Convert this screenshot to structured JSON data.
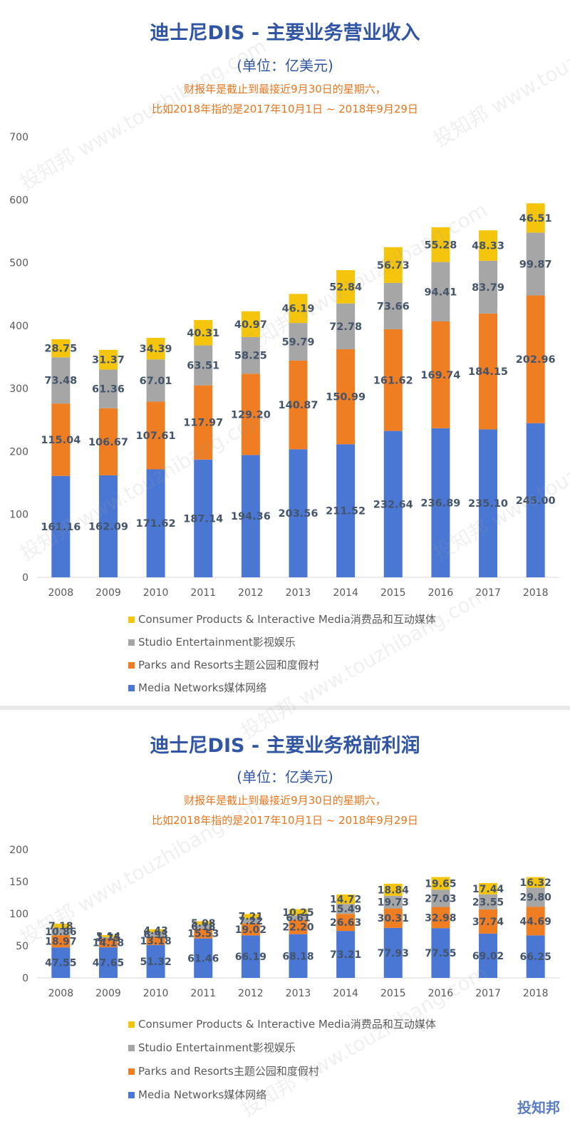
{
  "watermark": "投知邦 www.touzhibang.com",
  "logo": "投知邦",
  "colors": {
    "media": "#4a77d4",
    "parks": "#ef7d22",
    "studio": "#a6a6a6",
    "consumer": "#f5c40d",
    "title": "#2f55a4",
    "note": "#e9751d"
  },
  "chart_data": [
    {
      "type": "bar",
      "stacked": true,
      "title": "迪士尼DIS - 主要业务营业收入",
      "subtitle": "(单位：亿美元)",
      "notes": [
        "财报年是截止到最接近9月30日的星期六，",
        "比如2018年指的是2017年10月1日 ~ 2018年9月29日"
      ],
      "categories": [
        "2008",
        "2009",
        "2010",
        "2011",
        "2012",
        "2013",
        "2014",
        "2015",
        "2016",
        "2017",
        "2018"
      ],
      "ylim": [
        0,
        700
      ],
      "yticks": [
        "0",
        "100",
        "200",
        "300",
        "400",
        "500",
        "600",
        "700"
      ],
      "series": [
        {
          "name": "Media Networks媒体网络",
          "color": "#4a77d4",
          "values": [
            161.16,
            162.09,
            171.62,
            187.14,
            194.36,
            203.56,
            211.52,
            232.64,
            236.89,
            235.1,
            245.0
          ],
          "labels": [
            "161.16",
            "162.09",
            "171.62",
            "187.14",
            "194.36",
            "203.56",
            "211.52",
            "232.64",
            "236.89",
            "235.10",
            "245.00"
          ]
        },
        {
          "name": "Parks and Resorts主题公园和度假村",
          "color": "#ef7d22",
          "values": [
            115.04,
            106.67,
            107.61,
            117.97,
            129.2,
            140.87,
            150.99,
            161.62,
            169.74,
            184.15,
            202.96
          ],
          "labels": [
            "115.04",
            "106.67",
            "107.61",
            "117.97",
            "129.20",
            "140.87",
            "150.99",
            "161.62",
            "169.74",
            "184.15",
            "202.96"
          ]
        },
        {
          "name": "Studio Entertainment影视娱乐",
          "color": "#a6a6a6",
          "values": [
            73.48,
            61.36,
            67.01,
            63.51,
            58.25,
            59.79,
            72.78,
            73.66,
            94.41,
            83.79,
            99.87
          ],
          "labels": [
            "73.48",
            "61.36",
            "67.01",
            "63.51",
            "58.25",
            "59.79",
            "72.78",
            "73.66",
            "94.41",
            "83.79",
            "99.87"
          ]
        },
        {
          "name": "Consumer Products & Interactive Media消费品和互动媒体",
          "color": "#f5c40d",
          "values": [
            28.75,
            31.37,
            34.39,
            40.31,
            40.97,
            46.19,
            52.84,
            56.73,
            55.28,
            48.33,
            46.51
          ],
          "labels": [
            "28.75",
            "31.37",
            "34.39",
            "40.31",
            "40.97",
            "46.19",
            "52.84",
            "56.73",
            "55.28",
            "48.33",
            "46.51"
          ]
        }
      ],
      "legend": "bottom"
    },
    {
      "type": "bar",
      "stacked": true,
      "title": "迪士尼DIS - 主要业务税前利润",
      "subtitle": "(单位：亿美元)",
      "notes": [
        "财报年是截止到最接近9月30日的星期六，",
        "比如2018年指的是2017年10月1日 ~ 2018年9月29日"
      ],
      "categories": [
        "2008",
        "2009",
        "2010",
        "2011",
        "2012",
        "2013",
        "2014",
        "2015",
        "2016",
        "2017",
        "2018"
      ],
      "ylim": [
        0,
        200
      ],
      "yticks": [
        "0",
        "50",
        "100",
        "150",
        "200"
      ],
      "series": [
        {
          "name": "Media Networks媒体网络",
          "color": "#4a77d4",
          "values": [
            47.55,
            47.65,
            51.32,
            61.46,
            66.19,
            68.18,
            73.21,
            77.93,
            77.55,
            69.02,
            66.25
          ],
          "labels": [
            "47.55",
            "47.65",
            "51.32",
            "61.46",
            "66.19",
            "68.18",
            "73.21",
            "77.93",
            "77.55",
            "69.02",
            "66.25"
          ]
        },
        {
          "name": "Parks and Resorts主题公园和度假村",
          "color": "#ef7d22",
          "values": [
            18.97,
            14.18,
            13.18,
            15.53,
            19.02,
            22.2,
            26.63,
            30.31,
            32.98,
            37.74,
            44.69
          ],
          "labels": [
            "18.97",
            "14.18",
            "13.18",
            "15.53",
            "19.02",
            "22.20",
            "26.63",
            "30.31",
            "32.98",
            "37.74",
            "44.69"
          ]
        },
        {
          "name": "Studio Entertainment影视娱乐",
          "color": "#a6a6a6",
          "values": [
            10.86,
            1.75,
            6.93,
            6.18,
            7.22,
            6.61,
            15.49,
            19.73,
            27.03,
            23.55,
            29.8
          ],
          "labels": [
            "10.86",
            "1.75",
            "6.93",
            "6.18",
            "7.22",
            "6.61",
            "15.49",
            "19.73",
            "27.03",
            "23.55",
            "29.80"
          ]
        },
        {
          "name": "Consumer Products & Interactive Media消费品和互动媒体",
          "color": "#f5c40d",
          "values": [
            7.18,
            3.14,
            4.43,
            5.08,
            7.21,
            10.25,
            14.72,
            18.84,
            19.65,
            17.44,
            16.32
          ],
          "labels": [
            "7.18",
            "3.14",
            "4.43",
            "5.08",
            "7.21",
            "10.25",
            "14.72",
            "18.84",
            "19.65",
            "17.44",
            "16.32"
          ]
        }
      ],
      "legend": "bottom"
    }
  ]
}
